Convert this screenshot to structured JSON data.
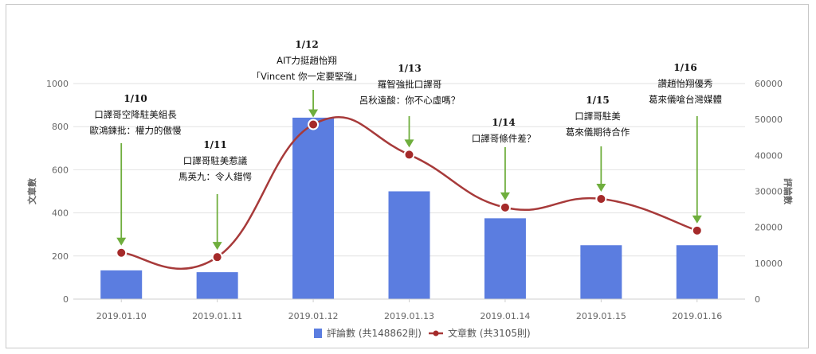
{
  "colors": {
    "bar": "#5b7de0",
    "line": "#a73a3a",
    "marker": "#a52a2a",
    "arrow": "#6fae3d",
    "grid": "#e2e2e2",
    "axis_text": "#666666"
  },
  "chart_data": {
    "type": "bar",
    "categories": [
      "2019.01.10",
      "2019.01.11",
      "2019.01.12",
      "2019.01.13",
      "2019.01.14",
      "2019.01.15",
      "2019.01.16"
    ],
    "series": [
      {
        "name": "評論數 (共148862則)",
        "type": "bar",
        "axis": "right",
        "values": [
          8000,
          7500,
          50500,
          30000,
          22500,
          15000,
          15000
        ]
      },
      {
        "name": "文章數 (共3105則)",
        "type": "line",
        "axis": "left",
        "smooth": true,
        "values": [
          215,
          195,
          810,
          670,
          425,
          465,
          318
        ]
      }
    ],
    "yleft": {
      "label": "文章數",
      "ylim": [
        0,
        1000
      ],
      "ticks": [
        "0",
        "200",
        "400",
        "600",
        "800",
        "1000"
      ]
    },
    "yright": {
      "label": "評論數",
      "ylim": [
        0,
        60000
      ],
      "ticks": [
        "0",
        "10000",
        "20000",
        "30000",
        "40000",
        "50000",
        "60000"
      ]
    },
    "grid": true,
    "legend": "bottom-center",
    "annotations": [
      {
        "date": "1/10",
        "lines": [
          "口譯哥空降駐美組長",
          "歐鴻鍊批：權力的傲慢"
        ]
      },
      {
        "date": "1/11",
        "lines": [
          "口譯哥駐美惹議",
          "馬英九：令人錯愕"
        ]
      },
      {
        "date": "1/12",
        "lines": [
          "AIT力挺趙怡翔",
          "「Vincent 你一定要堅強」"
        ]
      },
      {
        "date": "1/13",
        "lines": [
          "羅智強批口譯哥",
          "呂秋遠酸：你不心虛嗎？"
        ]
      },
      {
        "date": "1/14",
        "lines": [
          "口譯哥條件差？"
        ]
      },
      {
        "date": "1/15",
        "lines": [
          "口譯哥駐美",
          "葛來儀期待合作"
        ]
      },
      {
        "date": "1/16",
        "lines": [
          "讚趙怡翔優秀",
          "葛來儀嗆台灣媒體"
        ]
      }
    ]
  }
}
